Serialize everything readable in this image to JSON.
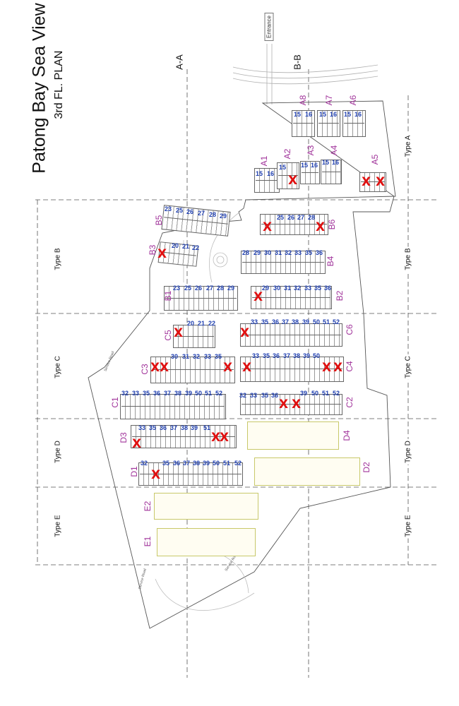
{
  "plan": {
    "title": "Patong Bay Sea View",
    "subtitle": "3rd FL. PLAN",
    "entrance": "Entrance",
    "service_road": "Service Road",
    "sections": {
      "aa": "A-A",
      "bb": "B-B"
    },
    "types": {
      "a": "Type A",
      "b": "Type B",
      "c": "Type C",
      "d": "Type D",
      "e": "Type E"
    },
    "blocks": {
      "a1": "A1",
      "a2": "A2",
      "a3": "A3",
      "a4": "A4",
      "a5": "A5",
      "a6": "A6",
      "a7": "A7",
      "a8": "A8",
      "b1": "B1",
      "b2": "B2",
      "b3": "B3",
      "b4": "B4",
      "b5": "B5",
      "b6": "B6",
      "c1": "C1",
      "c2": "C2",
      "c3": "C3",
      "c4": "C4",
      "c5": "C5",
      "c6": "C6",
      "d1": "D1",
      "d2": "D2",
      "d3": "D3",
      "d4": "D4",
      "e1": "E1",
      "e2": "E2"
    },
    "sold_mark": "X",
    "units": {
      "a1": [
        "15",
        "16"
      ],
      "a3": [
        "15",
        "16"
      ],
      "a4": [
        "15",
        "16"
      ],
      "a6": [
        "15",
        "16"
      ],
      "a7": [
        "15",
        "16"
      ],
      "a8": [
        "15",
        "16"
      ],
      "a2_top": "15",
      "b5": [
        "23",
        "25",
        "26",
        "27",
        "28",
        "29"
      ],
      "b6": [
        "25",
        "26",
        "27",
        "28"
      ],
      "b3": [
        "20",
        "21",
        "22"
      ],
      "b4": [
        "28",
        "29",
        "30",
        "31",
        "32",
        "33",
        "35",
        "36"
      ],
      "b1": [
        "23",
        "25",
        "26",
        "27",
        "28",
        "29"
      ],
      "b2": [
        "29",
        "30",
        "31",
        "32",
        "33",
        "35",
        "36"
      ],
      "c5": [
        "20",
        "21",
        "22"
      ],
      "c6": [
        "33",
        "35",
        "36",
        "37",
        "38",
        "39",
        "50",
        "51",
        "52"
      ],
      "c3": [
        "30",
        "31",
        "32",
        "33",
        "35"
      ],
      "c4": [
        "33",
        "35",
        "36",
        "37",
        "38",
        "39",
        "50"
      ],
      "c1": [
        "32",
        "33",
        "35",
        "36",
        "37",
        "38",
        "39",
        "50",
        "51",
        "52"
      ],
      "c2": [
        "32",
        "33",
        "35",
        "36",
        "39",
        "50",
        "51",
        "52"
      ],
      "d3": [
        "33",
        "35",
        "36",
        "37",
        "38",
        "39",
        "51"
      ],
      "d1": [
        "32",
        "35",
        "36",
        "37",
        "38",
        "39",
        "50",
        "51",
        "52"
      ]
    }
  }
}
